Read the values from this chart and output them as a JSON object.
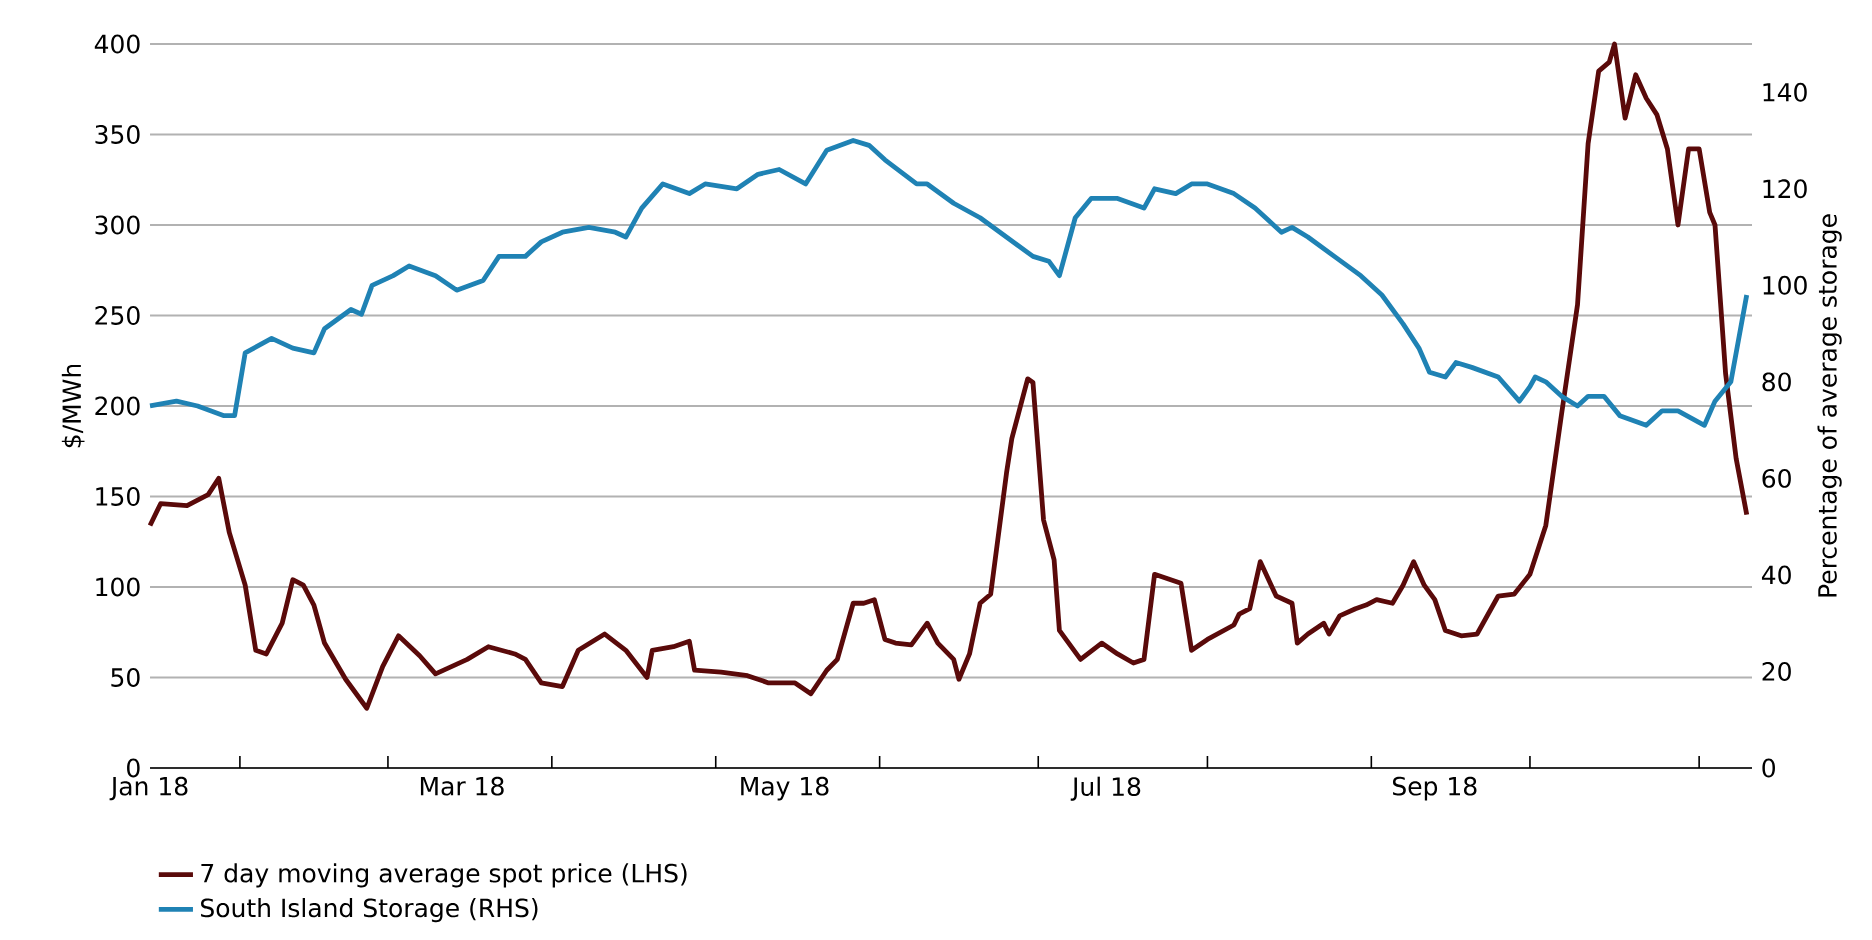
{
  "chart_data": {
    "type": "line",
    "ylabel": "$/MWh",
    "y2label": "Percentage of average storage",
    "xlim": [
      "2018-01-01",
      "2018-10-31"
    ],
    "xticks": [
      {
        "value": "2018-01-01",
        "label": "Jan 18"
      },
      {
        "value": "2018-03-01",
        "label": "Mar 18"
      },
      {
        "value": "2018-05-01",
        "label": "May 18"
      },
      {
        "value": "2018-07-01",
        "label": "Jul 18"
      },
      {
        "value": "2018-09-01",
        "label": "Sep 18"
      },
      {
        "value": "2018-01-18",
        "label": null
      },
      {
        "value": "2018-02-15",
        "label": null
      },
      {
        "value": "2018-03-18",
        "label": null
      },
      {
        "value": "2018-04-18",
        "label": null
      },
      {
        "value": "2018-05-19",
        "label": null
      },
      {
        "value": "2018-06-18",
        "label": null
      },
      {
        "value": "2018-07-20",
        "label": null
      },
      {
        "value": "2018-08-20",
        "label": null
      },
      {
        "value": "2018-09-19",
        "label": null
      },
      {
        "value": "2018-10-21",
        "label": null
      }
    ],
    "ylim": [
      0,
      400
    ],
    "yticks": [
      0,
      50,
      100,
      150,
      200,
      250,
      300,
      350,
      400
    ],
    "y2lim": [
      0,
      150
    ],
    "y2ticks": [
      0,
      20,
      40,
      60,
      80,
      100,
      120,
      140
    ],
    "grid": "y",
    "legend": "bottom",
    "marker": "none",
    "line_style": "solid",
    "series": [
      {
        "name": "7 day moving average spot price (LHS)",
        "color": "#5a0a0a",
        "x": [
          "2018-01-01",
          "2018-01-03",
          "2018-01-08",
          "2018-01-12",
          "2018-01-14",
          "2018-01-16",
          "2018-01-19",
          "2018-01-21",
          "2018-01-23",
          "2018-01-26",
          "2018-01-28",
          "2018-01-30",
          "2018-02-01",
          "2018-02-03",
          "2018-02-07",
          "2018-02-11",
          "2018-02-14",
          "2018-02-17",
          "2018-02-21",
          "2018-02-24",
          "2018-03-02",
          "2018-03-06",
          "2018-03-11",
          "2018-03-13",
          "2018-03-16",
          "2018-03-20",
          "2018-03-23",
          "2018-03-28",
          "2018-04-01",
          "2018-04-05",
          "2018-04-06",
          "2018-04-10",
          "2018-04-13",
          "2018-04-14",
          "2018-04-19",
          "2018-04-24",
          "2018-04-28",
          "2018-05-03",
          "2018-05-06",
          "2018-05-09",
          "2018-05-11",
          "2018-05-14",
          "2018-05-16",
          "2018-05-18",
          "2018-05-20",
          "2018-05-22",
          "2018-05-25",
          "2018-05-28",
          "2018-05-30",
          "2018-06-02",
          "2018-06-03",
          "2018-06-05",
          "2018-06-07",
          "2018-06-09",
          "2018-06-12",
          "2018-06-13",
          "2018-06-16",
          "2018-06-17",
          "2018-06-19",
          "2018-06-21",
          "2018-06-22",
          "2018-06-26",
          "2018-06-30",
          "2018-07-03",
          "2018-07-06",
          "2018-07-08",
          "2018-07-10",
          "2018-07-15",
          "2018-07-17",
          "2018-07-20",
          "2018-07-25",
          "2018-07-26",
          "2018-07-28",
          "2018-07-30",
          "2018-08-02",
          "2018-08-05",
          "2018-08-06",
          "2018-08-08",
          "2018-08-11",
          "2018-08-12",
          "2018-08-14",
          "2018-08-17",
          "2018-08-19",
          "2018-08-21",
          "2018-08-24",
          "2018-08-26",
          "2018-08-28",
          "2018-08-30",
          "2018-09-01",
          "2018-09-03",
          "2018-09-06",
          "2018-09-09",
          "2018-09-13",
          "2018-09-16",
          "2018-09-19",
          "2018-09-22",
          "2018-09-25",
          "2018-09-28",
          "2018-09-30",
          "2018-10-02",
          "2018-10-04",
          "2018-10-05",
          "2018-10-07",
          "2018-10-09",
          "2018-10-11",
          "2018-10-13",
          "2018-10-15",
          "2018-10-17",
          "2018-10-19",
          "2018-10-21",
          "2018-10-23",
          "2018-10-24",
          "2018-10-26",
          "2018-10-28",
          "2018-10-30"
        ],
        "values": [
          134,
          146,
          145,
          151,
          160,
          130,
          101,
          65,
          63,
          80,
          104,
          101,
          90,
          69,
          49,
          33,
          56,
          73,
          62,
          52,
          60,
          67,
          63,
          60,
          47,
          45,
          65,
          74,
          65,
          50,
          65,
          67,
          70,
          54,
          53,
          51,
          47,
          47,
          41,
          54,
          60,
          91,
          91,
          93,
          71,
          69,
          68,
          80,
          69,
          60,
          49,
          63,
          91,
          96,
          163,
          182,
          215,
          213,
          137,
          115,
          76,
          60,
          69,
          63,
          58,
          60,
          107,
          102,
          65,
          71,
          79,
          85,
          88,
          114,
          95,
          91,
          69,
          74,
          80,
          74,
          84,
          88,
          90,
          93,
          91,
          101,
          114,
          101,
          93,
          76,
          73,
          74,
          95,
          96,
          107,
          134,
          196,
          256,
          345,
          385,
          390,
          400,
          359,
          383,
          370,
          361,
          342,
          300,
          342,
          342,
          307,
          300,
          218,
          171,
          140
        ]
      },
      {
        "name": "South Island Storage (RHS)",
        "color": "#1f82b4",
        "axis": "y2",
        "x": [
          "2018-01-01",
          "2018-01-06",
          "2018-01-10",
          "2018-01-15",
          "2018-01-17",
          "2018-01-19",
          "2018-01-24",
          "2018-01-28",
          "2018-02-01",
          "2018-02-03",
          "2018-02-08",
          "2018-02-10",
          "2018-02-12",
          "2018-02-16",
          "2018-02-19",
          "2018-02-24",
          "2018-02-28",
          "2018-03-05",
          "2018-03-08",
          "2018-03-13",
          "2018-03-16",
          "2018-03-20",
          "2018-03-25",
          "2018-03-30",
          "2018-04-01",
          "2018-04-04",
          "2018-04-08",
          "2018-04-13",
          "2018-04-16",
          "2018-04-22",
          "2018-04-26",
          "2018-04-30",
          "2018-05-05",
          "2018-05-09",
          "2018-05-14",
          "2018-05-17",
          "2018-05-20",
          "2018-05-26",
          "2018-05-28",
          "2018-06-02",
          "2018-06-07",
          "2018-06-12",
          "2018-06-17",
          "2018-06-20",
          "2018-06-22",
          "2018-06-25",
          "2018-06-28",
          "2018-07-03",
          "2018-07-08",
          "2018-07-10",
          "2018-07-14",
          "2018-07-17",
          "2018-07-20",
          "2018-07-25",
          "2018-07-29",
          "2018-08-03",
          "2018-08-05",
          "2018-08-08",
          "2018-08-13",
          "2018-08-18",
          "2018-08-22",
          "2018-08-26",
          "2018-08-29",
          "2018-08-31",
          "2018-09-03",
          "2018-09-05",
          "2018-09-08",
          "2018-09-13",
          "2018-09-17",
          "2018-09-19",
          "2018-09-20",
          "2018-09-22",
          "2018-09-25",
          "2018-09-28",
          "2018-09-30",
          "2018-10-03",
          "2018-10-06",
          "2018-10-11",
          "2018-10-14",
          "2018-10-17",
          "2018-10-22",
          "2018-10-24",
          "2018-10-27",
          "2018-10-30"
        ],
        "values": [
          75,
          76,
          75,
          73,
          73,
          86,
          89,
          87,
          86,
          91,
          95,
          94,
          100,
          102,
          104,
          102,
          99,
          101,
          106,
          106,
          109,
          111,
          112,
          111,
          110,
          116,
          121,
          119,
          121,
          120,
          123,
          124,
          121,
          128,
          130,
          129,
          126,
          121,
          121,
          117,
          114,
          110,
          106,
          105,
          102,
          114,
          118,
          118,
          116,
          120,
          119,
          121,
          121,
          119,
          116,
          111,
          112,
          110,
          106,
          102,
          98,
          92,
          87,
          82,
          81,
          84,
          83,
          81,
          76,
          79,
          81,
          80,
          77,
          75,
          77,
          77,
          73,
          71,
          74,
          74,
          71,
          76,
          80,
          98
        ]
      }
    ]
  }
}
